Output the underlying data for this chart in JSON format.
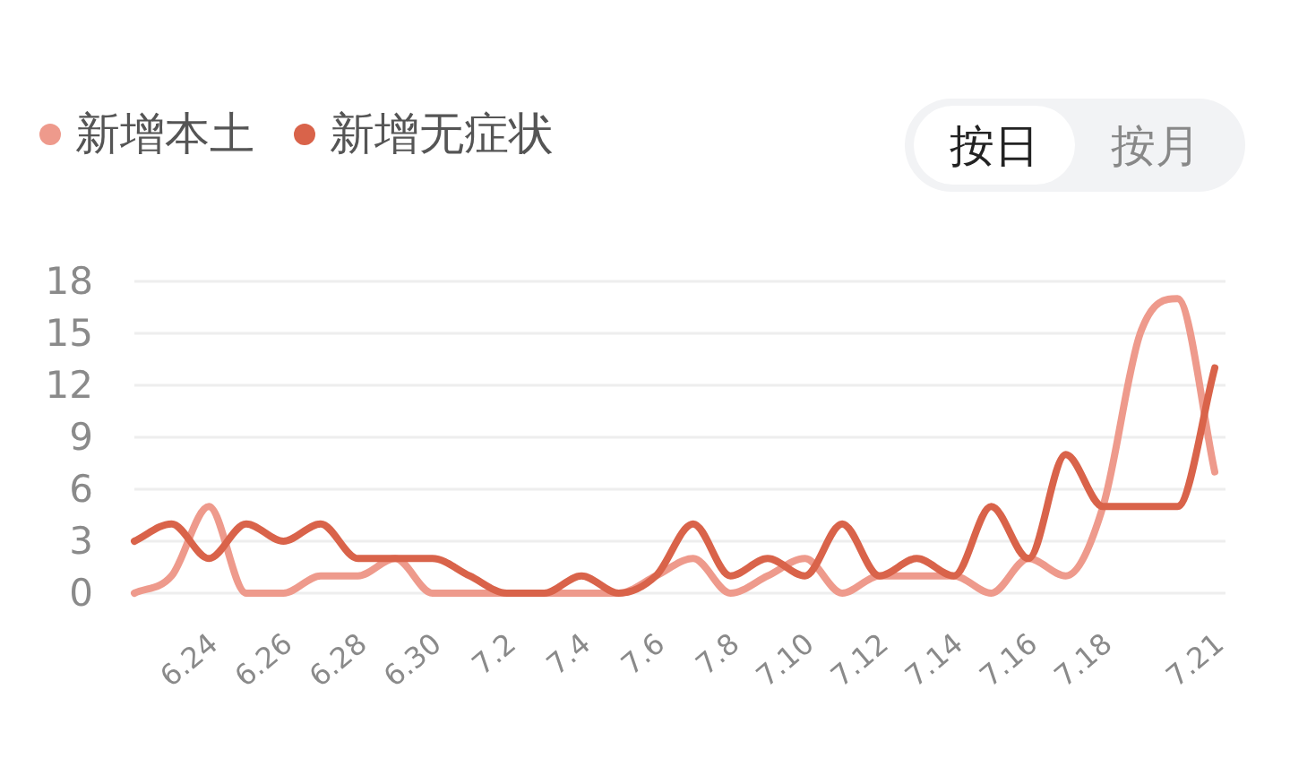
{
  "chart_data": {
    "type": "line",
    "categories": [
      null,
      null,
      "6.24",
      null,
      "6.26",
      null,
      "6.28",
      null,
      "6.30",
      null,
      "7.2",
      null,
      "7.4",
      null,
      "7.6",
      null,
      "7.8",
      null,
      "7.10",
      null,
      "7.12",
      null,
      "7.14",
      null,
      "7.16",
      null,
      "7.18",
      null,
      null,
      "7.21"
    ],
    "series": [
      {
        "name": "新增本土",
        "color": "#ee9a8c",
        "values": [
          0,
          1,
          5,
          0,
          0,
          1,
          1,
          2,
          0,
          0,
          0,
          0,
          0,
          0,
          1,
          2,
          0,
          1,
          2,
          0,
          1,
          1,
          1,
          0,
          2,
          1,
          5,
          15,
          17,
          7
        ]
      },
      {
        "name": "新增无症状",
        "color": "#d9634a",
        "values": [
          3,
          4,
          2,
          4,
          3,
          4,
          2,
          2,
          2,
          1,
          0,
          0,
          1,
          0,
          1,
          4,
          1,
          2,
          1,
          4,
          1,
          2,
          1,
          5,
          2,
          8,
          5,
          5,
          5,
          13
        ]
      }
    ],
    "ylim": [
      0,
      18
    ],
    "yticks": [
      0,
      3,
      6,
      9,
      12,
      15,
      18
    ],
    "grid": "y",
    "legend": "top left",
    "marker": "none",
    "line_style": "solid",
    "annotations": [
      "按日",
      "按月"
    ]
  }
}
